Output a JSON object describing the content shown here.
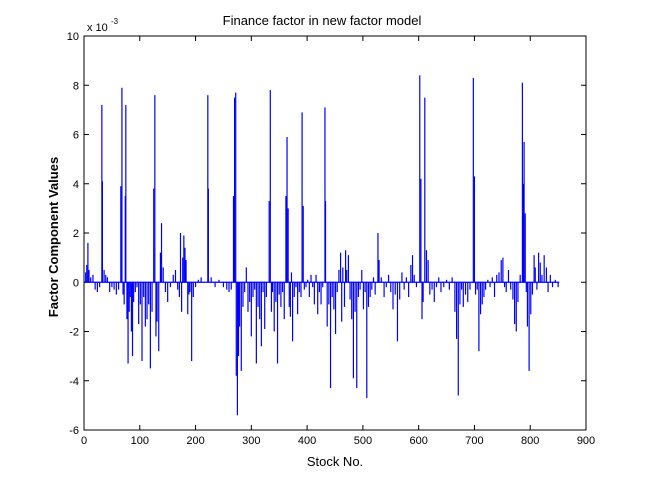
{
  "chart_data": {
    "type": "bar",
    "title": "Finance factor in new factor model",
    "xlabel": "Stock No.",
    "ylabel": "Factor Component Values",
    "y_multiplier_label": "x 10",
    "y_multiplier_exponent": "-3",
    "xlim": [
      0,
      900
    ],
    "ylim": [
      -6,
      10
    ],
    "x_ticks": [
      0,
      100,
      200,
      300,
      400,
      500,
      600,
      700,
      800,
      900
    ],
    "y_ticks": [
      -6,
      -4,
      -2,
      0,
      2,
      4,
      6,
      8,
      10
    ],
    "grid": false,
    "series": [
      {
        "color": "#0000ff",
        "points": [
          [
            3,
            0.4
          ],
          [
            5,
            0.7
          ],
          [
            7,
            1.6
          ],
          [
            9,
            0.5
          ],
          [
            12,
            0.2
          ],
          [
            16,
            0.3
          ],
          [
            20,
            -0.3
          ],
          [
            24,
            -0.4
          ],
          [
            28,
            -0.2
          ],
          [
            32,
            7.2
          ],
          [
            33,
            4.1
          ],
          [
            36,
            0.5
          ],
          [
            39,
            0.3
          ],
          [
            42,
            0.2
          ],
          [
            46,
            -0.4
          ],
          [
            50,
            -0.2
          ],
          [
            54,
            -0.3
          ],
          [
            58,
            -0.5
          ],
          [
            62,
            -0.3
          ],
          [
            66,
            3.9
          ],
          [
            68,
            7.9
          ],
          [
            70,
            -0.5
          ],
          [
            72,
            -0.9
          ],
          [
            74,
            3.5
          ],
          [
            75,
            7.2
          ],
          [
            77,
            -1.5
          ],
          [
            79,
            -3.3
          ],
          [
            81,
            -1.2
          ],
          [
            83,
            -0.6
          ],
          [
            85,
            -2.0
          ],
          [
            87,
            -3.0
          ],
          [
            89,
            -0.8
          ],
          [
            92,
            -0.4
          ],
          [
            95,
            -0.2
          ],
          [
            98,
            -1.7
          ],
          [
            101,
            -0.9
          ],
          [
            104,
            -3.2
          ],
          [
            107,
            -0.6
          ],
          [
            110,
            -1.8
          ],
          [
            113,
            -1.5
          ],
          [
            116,
            -0.9
          ],
          [
            119,
            -3.5
          ],
          [
            122,
            -1.2
          ],
          [
            125,
            3.8
          ],
          [
            127,
            7.6
          ],
          [
            129,
            -2.2
          ],
          [
            131,
            -1.6
          ],
          [
            134,
            -2.8
          ],
          [
            137,
            1.2
          ],
          [
            139,
            2.4
          ],
          [
            142,
            0.6
          ],
          [
            146,
            -0.4
          ],
          [
            150,
            -0.8
          ],
          [
            155,
            -0.2
          ],
          [
            160,
            0.3
          ],
          [
            164,
            0.5
          ],
          [
            168,
            -0.3
          ],
          [
            171,
            -0.6
          ],
          [
            173,
            2.0
          ],
          [
            175,
            -1.2
          ],
          [
            177,
            1.0
          ],
          [
            179,
            1.9
          ],
          [
            181,
            1.4
          ],
          [
            183,
            0.9
          ],
          [
            186,
            -1.3
          ],
          [
            188,
            -0.5
          ],
          [
            190,
            -0.4
          ],
          [
            193,
            -3.2
          ],
          [
            196,
            -0.6
          ],
          [
            200,
            -0.2
          ],
          [
            205,
            0.1
          ],
          [
            210,
            0.2
          ],
          [
            222,
            7.6
          ],
          [
            223,
            3.8
          ],
          [
            228,
            0.2
          ],
          [
            235,
            -0.2
          ],
          [
            242,
            0.1
          ],
          [
            250,
            -0.2
          ],
          [
            256,
            -0.3
          ],
          [
            260,
            -0.4
          ],
          [
            264,
            -0.3
          ],
          [
            268,
            3.5
          ],
          [
            270,
            7.5
          ],
          [
            272,
            7.7
          ],
          [
            273,
            -3.8
          ],
          [
            275,
            -5.4
          ],
          [
            277,
            -3.0
          ],
          [
            279,
            -1.8
          ],
          [
            282,
            -3.6
          ],
          [
            285,
            -1.0
          ],
          [
            288,
            -0.4
          ],
          [
            291,
            0.6
          ],
          [
            294,
            -1.2
          ],
          [
            297,
            -0.8
          ],
          [
            300,
            -2.2
          ],
          [
            303,
            -0.6
          ],
          [
            306,
            -0.3
          ],
          [
            309,
            -3.3
          ],
          [
            312,
            -1.0
          ],
          [
            315,
            -1.5
          ],
          [
            318,
            -2.6
          ],
          [
            321,
            -0.4
          ],
          [
            324,
            -1.9
          ],
          [
            327,
            -0.6
          ],
          [
            332,
            3.3
          ],
          [
            334,
            7.8
          ],
          [
            336,
            -1.2
          ],
          [
            338,
            -0.4
          ],
          [
            341,
            -2.0
          ],
          [
            344,
            -0.8
          ],
          [
            347,
            -3.3
          ],
          [
            350,
            -0.5
          ],
          [
            353,
            -1.0
          ],
          [
            356,
            -0.4
          ],
          [
            359,
            -1.5
          ],
          [
            362,
            3.5
          ],
          [
            364,
            5.9
          ],
          [
            366,
            3.0
          ],
          [
            368,
            -1.0
          ],
          [
            370,
            -1.4
          ],
          [
            372,
            0.4
          ],
          [
            374,
            -2.4
          ],
          [
            377,
            -0.6
          ],
          [
            380,
            -0.2
          ],
          [
            383,
            -1.3
          ],
          [
            386,
            -0.4
          ],
          [
            389,
            -0.6
          ],
          [
            391,
            6.9
          ],
          [
            393,
            3.1
          ],
          [
            395,
            -0.3
          ],
          [
            398,
            -0.2
          ],
          [
            401,
            0.1
          ],
          [
            404,
            -0.6
          ],
          [
            407,
            0.3
          ],
          [
            410,
            -0.2
          ],
          [
            413,
            -0.9
          ],
          [
            416,
            0.3
          ],
          [
            419,
            -1.3
          ],
          [
            422,
            -0.4
          ],
          [
            425,
            -0.9
          ],
          [
            428,
            -0.2
          ],
          [
            432,
            7.1
          ],
          [
            433,
            3.3
          ],
          [
            436,
            -1.8
          ],
          [
            439,
            -0.9
          ],
          [
            442,
            -4.3
          ],
          [
            445,
            -0.6
          ],
          [
            448,
            -1.1
          ],
          [
            451,
            -2.1
          ],
          [
            454,
            -0.4
          ],
          [
            457,
            0.5
          ],
          [
            460,
            1.2
          ],
          [
            462,
            -1.6
          ],
          [
            464,
            0.6
          ],
          [
            467,
            -1.0
          ],
          [
            469,
            1.3
          ],
          [
            471,
            0.5
          ],
          [
            474,
            1.1
          ],
          [
            477,
            -0.7
          ],
          [
            480,
            -1.5
          ],
          [
            483,
            -3.9
          ],
          [
            486,
            -1.2
          ],
          [
            489,
            -4.3
          ],
          [
            492,
            -0.6
          ],
          [
            495,
            -0.3
          ],
          [
            498,
            0.5
          ],
          [
            501,
            -1.1
          ],
          [
            504,
            -0.4
          ],
          [
            507,
            -4.7
          ],
          [
            510,
            -1.0
          ],
          [
            513,
            -0.6
          ],
          [
            516,
            -0.3
          ],
          [
            519,
            0.2
          ],
          [
            522,
            -0.5
          ],
          [
            527,
            2.0
          ],
          [
            529,
            0.9
          ],
          [
            533,
            0.2
          ],
          [
            538,
            -0.6
          ],
          [
            542,
            -0.2
          ],
          [
            546,
            0.3
          ],
          [
            550,
            -0.4
          ],
          [
            554,
            -1.1
          ],
          [
            558,
            -0.5
          ],
          [
            562,
            -2.4
          ],
          [
            566,
            -0.7
          ],
          [
            570,
            0.4
          ],
          [
            574,
            -0.3
          ],
          [
            578,
            0.2
          ],
          [
            582,
            -0.6
          ],
          [
            586,
            0.7
          ],
          [
            589,
            1.1
          ],
          [
            592,
            0.3
          ],
          [
            596,
            -0.2
          ],
          [
            602,
            8.4
          ],
          [
            604,
            4.2
          ],
          [
            606,
            -1.5
          ],
          [
            608,
            -0.8
          ],
          [
            611,
            7.5
          ],
          [
            614,
            1.3
          ],
          [
            617,
            0.9
          ],
          [
            620,
            -0.5
          ],
          [
            624,
            -0.3
          ],
          [
            628,
            -0.8
          ],
          [
            632,
            -0.2
          ],
          [
            636,
            0.2
          ],
          [
            640,
            -0.4
          ],
          [
            645,
            -0.2
          ],
          [
            650,
            0.1
          ],
          [
            655,
            -0.3
          ],
          [
            660,
            0.2
          ],
          [
            665,
            -1.2
          ],
          [
            668,
            -2.3
          ],
          [
            671,
            -4.6
          ],
          [
            674,
            -0.9
          ],
          [
            677,
            -0.3
          ],
          [
            680,
            -1.0
          ],
          [
            684,
            -0.5
          ],
          [
            688,
            -0.8
          ],
          [
            692,
            -0.3
          ],
          [
            698,
            8.3
          ],
          [
            700,
            4.3
          ],
          [
            702,
            -0.5
          ],
          [
            705,
            -0.3
          ],
          [
            708,
            -2.8
          ],
          [
            711,
            -1.3
          ],
          [
            714,
            -0.9
          ],
          [
            717,
            -0.6
          ],
          [
            720,
            -0.3
          ],
          [
            724,
            0.1
          ],
          [
            728,
            -0.2
          ],
          [
            732,
            0.2
          ],
          [
            736,
            -0.6
          ],
          [
            740,
            0.3
          ],
          [
            744,
            0.4
          ],
          [
            748,
            0.9
          ],
          [
            751,
            1.0
          ],
          [
            754,
            -0.2
          ],
          [
            757,
            -0.4
          ],
          [
            761,
            0.5
          ],
          [
            765,
            -0.3
          ],
          [
            769,
            -0.7
          ],
          [
            772,
            -1.7
          ],
          [
            775,
            -2.0
          ],
          [
            778,
            -0.8
          ],
          [
            782,
            0.3
          ],
          [
            786,
            8.1
          ],
          [
            787,
            4.0
          ],
          [
            789,
            5.7
          ],
          [
            791,
            2.8
          ],
          [
            793,
            -0.4
          ],
          [
            795,
            -1.8
          ],
          [
            798,
            -3.6
          ],
          [
            801,
            -1.3
          ],
          [
            804,
            -0.5
          ],
          [
            807,
            1.1
          ],
          [
            809,
            0.6
          ],
          [
            812,
            -0.3
          ],
          [
            815,
            1.2
          ],
          [
            818,
            0.8
          ],
          [
            821,
            0.3
          ],
          [
            825,
            1.1
          ],
          [
            829,
            0.6
          ],
          [
            832,
            -0.4
          ],
          [
            836,
            0.3
          ],
          [
            840,
            -0.2
          ],
          [
            845,
            0.1
          ],
          [
            850,
            -0.2
          ]
        ]
      }
    ]
  }
}
